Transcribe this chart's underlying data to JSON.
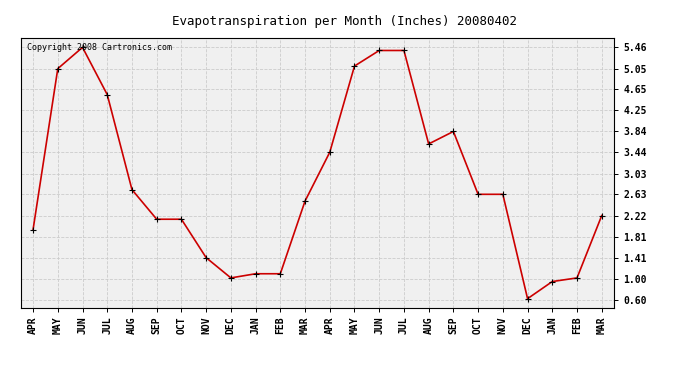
{
  "title": "Evapotranspiration per Month (Inches) 20080402",
  "copyright": "Copyright 2008 Cartronics.com",
  "months": [
    "APR",
    "MAY",
    "JUN",
    "JUL",
    "AUG",
    "SEP",
    "OCT",
    "NOV",
    "DEC",
    "JAN",
    "FEB",
    "MAR",
    "APR",
    "MAY",
    "JUN",
    "JUL",
    "AUG",
    "SEP",
    "OCT",
    "NOV",
    "DEC",
    "JAN",
    "FEB",
    "MAR"
  ],
  "values": [
    1.95,
    5.05,
    5.46,
    4.55,
    2.72,
    2.15,
    2.15,
    1.41,
    1.02,
    1.1,
    1.1,
    2.5,
    3.44,
    5.1,
    5.4,
    5.4,
    3.6,
    3.84,
    2.63,
    2.63,
    0.62,
    0.95,
    1.02,
    2.22
  ],
  "line_color": "#cc0000",
  "marker": "+",
  "markersize": 4,
  "linewidth": 1.2,
  "yticks": [
    0.6,
    1.0,
    1.41,
    1.81,
    2.22,
    2.63,
    3.03,
    3.44,
    3.84,
    4.25,
    4.65,
    5.05,
    5.46
  ],
  "ylim": [
    0.45,
    5.65
  ],
  "grid_color": "#cccccc",
  "bg_color": "#f0f0f0",
  "title_fontsize": 9,
  "copyright_fontsize": 6,
  "tick_fontsize": 7,
  "ytick_fontsize": 7
}
